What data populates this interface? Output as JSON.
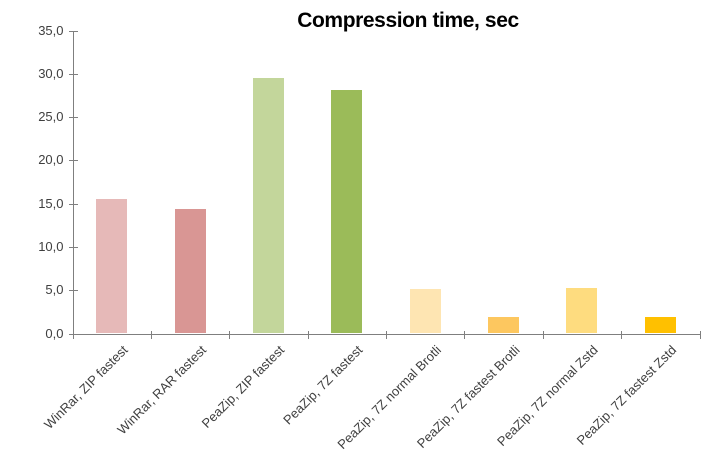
{
  "chart_data": {
    "type": "bar",
    "title": "Compression time, sec",
    "categories": [
      "WinRar, ZIP fastest",
      "WinRar, RAR fastest",
      "PeaZip, ZIP fastest",
      "PeaZip, 7Z fastest",
      "PeaZip, 7Z normal Brotli",
      "PeaZip, 7Z fastest Brotli",
      "PeaZip, 7Z normal Zstd",
      "PeaZip, 7Z fastest Zstd"
    ],
    "values": [
      15.5,
      14.4,
      29.5,
      28.1,
      5.1,
      1.9,
      5.2,
      1.9
    ],
    "bar_colors": [
      "#E6B9B8",
      "#D99694",
      "#C3D69B",
      "#9BBB59",
      "#FEE5B2",
      "#FDC75F",
      "#FEDC7F",
      "#FFC000"
    ],
    "xlabel": "",
    "ylabel": "",
    "ylim": [
      0,
      35
    ],
    "ytick_step": 5,
    "ytick_labels": [
      "0,0",
      "5,0",
      "10,0",
      "15,0",
      "20,0",
      "25,0",
      "30,0",
      "35,0"
    ],
    "decimal_separator": ",",
    "grid": false,
    "legend": false,
    "axis_color": "#7f7f7f",
    "tick_text_color": "#3f3f3f",
    "title_color": "#000000",
    "background_color": "#ffffff"
  }
}
